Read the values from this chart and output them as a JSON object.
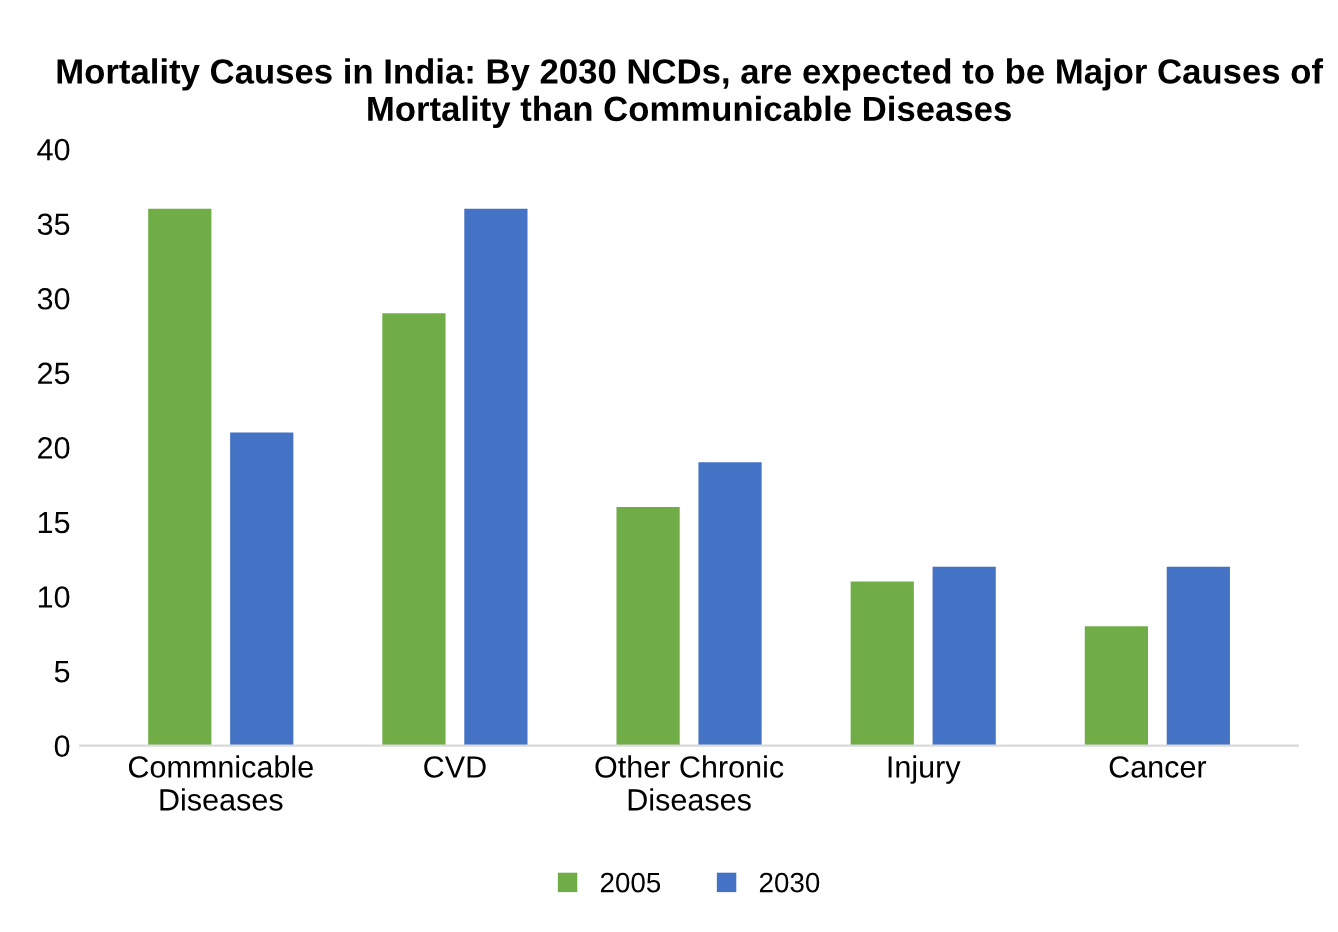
{
  "chart_data": {
    "type": "bar",
    "title": "Mortality Causes in India: By 2030 NCDs, are expected to be Major Causes of Mortality than Communicable Diseases",
    "categories": [
      "Commnicable\nDiseases",
      "CVD",
      "Other Chronic\nDiseases",
      "Injury",
      "Cancer"
    ],
    "series": [
      {
        "name": "2005",
        "color": "#70ad47",
        "values": [
          36,
          29,
          16,
          11,
          8
        ]
      },
      {
        "name": "2030",
        "color": "#4472c4",
        "values": [
          21,
          36,
          19,
          12,
          12
        ]
      }
    ],
    "ylim": [
      0,
      40
    ],
    "yticks": [
      0,
      5,
      10,
      15,
      20,
      25,
      30,
      35,
      40
    ],
    "grid": false,
    "legend": "bottom"
  }
}
